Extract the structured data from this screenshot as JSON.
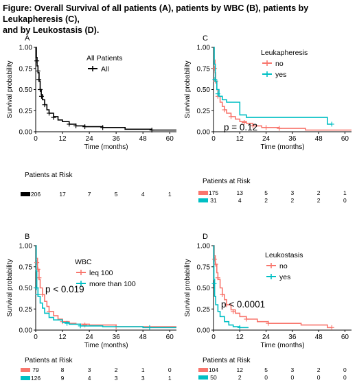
{
  "figure": {
    "title_line1": "Figure: Overall Survival of all patients (A), patients by WBC (B), patients by Leukapheresis (C),",
    "title_line2": "and by Leukostasis (D)."
  },
  "colors": {
    "red": "#f8766d",
    "teal": "#00bfc4",
    "black": "#000000"
  },
  "chart_data": [
    {
      "id": "A",
      "type": "line",
      "panel_label": "A",
      "xlabel": "Time (months)",
      "ylabel": "Survival probability",
      "xlim": [
        0,
        63
      ],
      "ylim": [
        0,
        1
      ],
      "xticks": [
        0,
        12,
        24,
        36,
        48,
        60
      ],
      "yticks": [
        "0.00",
        "0.25",
        "0.50",
        "0.75",
        "1.00"
      ],
      "legend_title": "All Patients",
      "legend_placement": "top-right",
      "pvalue": "",
      "risk_title": "Patients at Risk",
      "risk_times": [
        0,
        12,
        24,
        36,
        48,
        60
      ],
      "series": [
        {
          "name": "All",
          "color": "#000000",
          "points": [
            [
              0,
              1.0
            ],
            [
              0.3,
              0.88
            ],
            [
              0.6,
              0.78
            ],
            [
              1,
              0.7
            ],
            [
              1.5,
              0.6
            ],
            [
              2,
              0.5
            ],
            [
              2.5,
              0.44
            ],
            [
              3,
              0.38
            ],
            [
              4,
              0.32
            ],
            [
              5,
              0.26
            ],
            [
              6,
              0.22
            ],
            [
              8,
              0.18
            ],
            [
              10,
              0.14
            ],
            [
              12,
              0.12
            ],
            [
              15,
              0.09
            ],
            [
              18,
              0.07
            ],
            [
              22,
              0.06
            ],
            [
              30,
              0.05
            ],
            [
              40,
              0.03
            ],
            [
              52,
              0.02
            ],
            [
              63,
              0.02
            ]
          ],
          "censors": [
            [
              0.5,
              0.84
            ],
            [
              1,
              0.72
            ],
            [
              1.4,
              0.62
            ],
            [
              2,
              0.5
            ],
            [
              2.6,
              0.42
            ],
            [
              4,
              0.32
            ],
            [
              6,
              0.22
            ],
            [
              8,
              0.17
            ],
            [
              15,
              0.09
            ],
            [
              18,
              0.07
            ],
            [
              22,
              0.06
            ],
            [
              30,
              0.05
            ],
            [
              52,
              0.02
            ]
          ],
          "risk": [
            206,
            17,
            7,
            5,
            4,
            1
          ]
        }
      ]
    },
    {
      "id": "C",
      "type": "line",
      "panel_label": "C",
      "xlabel": "Time (months)",
      "ylabel": "Survival probability",
      "xlim": [
        0,
        63
      ],
      "ylim": [
        0,
        1
      ],
      "xticks": [
        0,
        12,
        24,
        36,
        48,
        60
      ],
      "yticks": [
        "0.00",
        "0.25",
        "0.50",
        "0.75",
        "1.00"
      ],
      "legend_title": "Leukapheresis",
      "legend_placement": "top-right",
      "pvalue": "p = 0.12",
      "risk_title": "Patients at Risk",
      "risk_times": [
        0,
        12,
        24,
        36,
        48,
        60
      ],
      "series": [
        {
          "name": "no",
          "color": "#f8766d",
          "points": [
            [
              0,
              1.0
            ],
            [
              0.3,
              0.85
            ],
            [
              0.7,
              0.7
            ],
            [
              1,
              0.58
            ],
            [
              1.5,
              0.5
            ],
            [
              2,
              0.42
            ],
            [
              3,
              0.35
            ],
            [
              4,
              0.3
            ],
            [
              5,
              0.26
            ],
            [
              6,
              0.22
            ],
            [
              8,
              0.18
            ],
            [
              10,
              0.15
            ],
            [
              12,
              0.12
            ],
            [
              15,
              0.1
            ],
            [
              18,
              0.07
            ],
            [
              22,
              0.05
            ],
            [
              30,
              0.04
            ],
            [
              42,
              0.02
            ],
            [
              63,
              0.02
            ]
          ],
          "censors": [
            [
              0.5,
              0.75
            ],
            [
              1,
              0.6
            ],
            [
              2,
              0.42
            ],
            [
              5,
              0.26
            ],
            [
              8,
              0.18
            ],
            [
              14,
              0.11
            ],
            [
              18,
              0.07
            ],
            [
              24,
              0.05
            ],
            [
              30,
              0.04
            ]
          ],
          "risk": [
            175,
            13,
            5,
            3,
            2,
            1
          ]
        },
        {
          "name": "yes",
          "color": "#00bfc4",
          "points": [
            [
              0,
              1.0
            ],
            [
              0.3,
              0.8
            ],
            [
              0.8,
              0.6
            ],
            [
              1.5,
              0.5
            ],
            [
              2.5,
              0.42
            ],
            [
              4,
              0.38
            ],
            [
              6,
              0.35
            ],
            [
              12,
              0.2
            ],
            [
              15,
              0.17
            ],
            [
              51,
              0.17
            ],
            [
              52,
              0.09
            ],
            [
              54,
              0.09
            ]
          ],
          "censors": [
            [
              0.6,
              0.62
            ],
            [
              2,
              0.45
            ],
            [
              54,
              0.09
            ]
          ],
          "risk": [
            31,
            4,
            2,
            2,
            2,
            0
          ]
        }
      ]
    },
    {
      "id": "B",
      "type": "line",
      "panel_label": "B",
      "xlabel": "Time (months)",
      "ylabel": "Survival probability",
      "xlim": [
        0,
        63
      ],
      "ylim": [
        0,
        1
      ],
      "xticks": [
        0,
        12,
        24,
        36,
        48,
        60
      ],
      "yticks": [
        "0.00",
        "0.25",
        "0.50",
        "0.75",
        "1.00"
      ],
      "legend_title": "WBC",
      "legend_placement": "top-right",
      "pvalue": "p < 0.019",
      "risk_title": "Patients at Risk",
      "risk_times": [
        0,
        12,
        24,
        36,
        48,
        60
      ],
      "series": [
        {
          "name": "leq 100",
          "color": "#f8766d",
          "points": [
            [
              0,
              1.0
            ],
            [
              0.3,
              0.85
            ],
            [
              0.8,
              0.72
            ],
            [
              1.5,
              0.6
            ],
            [
              2,
              0.5
            ],
            [
              3,
              0.42
            ],
            [
              4,
              0.34
            ],
            [
              5,
              0.28
            ],
            [
              6,
              0.22
            ],
            [
              8,
              0.17
            ],
            [
              10,
              0.13
            ],
            [
              12,
              0.1
            ],
            [
              15,
              0.08
            ],
            [
              18,
              0.07
            ],
            [
              24,
              0.06
            ],
            [
              36,
              0.04
            ],
            [
              60,
              0.04
            ],
            [
              63,
              0.04
            ]
          ],
          "censors": [
            [
              0.5,
              0.8
            ],
            [
              1,
              0.72
            ],
            [
              1.5,
              0.62
            ],
            [
              3,
              0.42
            ],
            [
              6,
              0.22
            ],
            [
              12,
              0.1
            ],
            [
              22,
              0.06
            ],
            [
              36,
              0.04
            ]
          ],
          "risk": [
            79,
            8,
            3,
            2,
            1,
            0
          ]
        },
        {
          "name": "more than 100",
          "color": "#00bfc4",
          "points": [
            [
              0,
              1.0
            ],
            [
              0.2,
              0.7
            ],
            [
              0.5,
              0.5
            ],
            [
              1,
              0.4
            ],
            [
              2,
              0.32
            ],
            [
              3,
              0.26
            ],
            [
              4,
              0.2
            ],
            [
              6,
              0.15
            ],
            [
              8,
              0.12
            ],
            [
              12,
              0.09
            ],
            [
              15,
              0.07
            ],
            [
              20,
              0.05
            ],
            [
              30,
              0.04
            ],
            [
              48,
              0.03
            ],
            [
              63,
              0.03
            ]
          ],
          "censors": [
            [
              0.3,
              0.5
            ],
            [
              1,
              0.42
            ],
            [
              14,
              0.08
            ],
            [
              20,
              0.05
            ],
            [
              51,
              0.03
            ]
          ],
          "risk": [
            126,
            9,
            4,
            3,
            3,
            1
          ]
        }
      ]
    },
    {
      "id": "D",
      "type": "line",
      "panel_label": "D",
      "xlabel": "Time (months)",
      "ylabel": "Survival probability",
      "xlim": [
        0,
        63
      ],
      "ylim": [
        0,
        1
      ],
      "xticks": [
        0,
        12,
        24,
        36,
        48,
        60
      ],
      "yticks": [
        "0.00",
        "0.25",
        "0.50",
        "0.75",
        "1.00"
      ],
      "legend_title": "Leukostasis",
      "legend_placement": "top-right",
      "pvalue": "p < 0.0001",
      "risk_title": "Patients at Risk",
      "risk_times": [
        0,
        12,
        24,
        36,
        48,
        60
      ],
      "series": [
        {
          "name": "no",
          "color": "#f8766d",
          "points": [
            [
              0,
              1.0
            ],
            [
              0.3,
              0.88
            ],
            [
              0.8,
              0.78
            ],
            [
              1.5,
              0.68
            ],
            [
              2,
              0.6
            ],
            [
              3,
              0.5
            ],
            [
              4,
              0.42
            ],
            [
              5,
              0.36
            ],
            [
              6,
              0.3
            ],
            [
              8,
              0.24
            ],
            [
              10,
              0.2
            ],
            [
              12,
              0.16
            ],
            [
              15,
              0.13
            ],
            [
              20,
              0.1
            ],
            [
              25,
              0.08
            ],
            [
              40,
              0.06
            ],
            [
              52,
              0.03
            ],
            [
              54,
              0.03
            ]
          ],
          "censors": [
            [
              0.5,
              0.84
            ],
            [
              1,
              0.78
            ],
            [
              2,
              0.62
            ],
            [
              4,
              0.42
            ],
            [
              6,
              0.3
            ],
            [
              9,
              0.22
            ],
            [
              15,
              0.13
            ],
            [
              25,
              0.08
            ],
            [
              54,
              0.03
            ]
          ],
          "risk": [
            104,
            12,
            5,
            3,
            2,
            0
          ]
        },
        {
          "name": "yes",
          "color": "#00bfc4",
          "points": [
            [
              0,
              1.0
            ],
            [
              0.2,
              0.6
            ],
            [
              0.5,
              0.4
            ],
            [
              1,
              0.3
            ],
            [
              2,
              0.22
            ],
            [
              3,
              0.16
            ],
            [
              5,
              0.1
            ],
            [
              7,
              0.06
            ],
            [
              9,
              0.04
            ],
            [
              12,
              0.03
            ],
            [
              16,
              0.03
            ]
          ],
          "censors": [
            [
              0.3,
              0.55
            ],
            [
              12,
              0.03
            ]
          ],
          "risk": [
            50,
            2,
            0,
            0,
            0,
            0
          ]
        }
      ]
    }
  ]
}
